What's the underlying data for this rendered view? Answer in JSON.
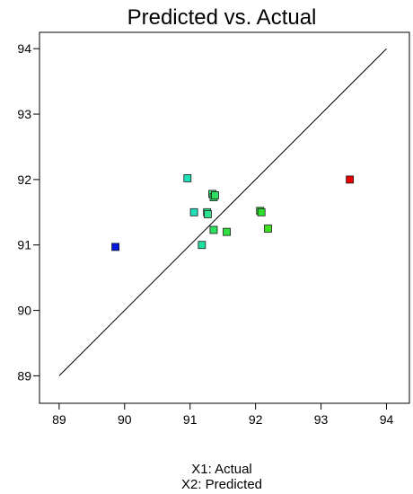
{
  "chart_data": {
    "type": "scatter",
    "title": "Predicted vs. Actual",
    "xlabel": "X1: Actual",
    "ylabel": "X2: Predicted",
    "xlim": [
      88.7,
      94.35
    ],
    "ylim": [
      88.58,
      94.25
    ],
    "x_ticks": [
      "89",
      "90",
      "91",
      "92",
      "93",
      "94"
    ],
    "y_ticks": [
      "89",
      "90",
      "91",
      "92",
      "93",
      "94"
    ],
    "grid": false,
    "reference_line": {
      "x": [
        89,
        94
      ],
      "y": [
        89,
        94
      ]
    },
    "points": [
      {
        "x": 89.86,
        "y": 90.97,
        "color": "#0018e0"
      },
      {
        "x": 90.96,
        "y": 92.02,
        "color": "#20e0b8"
      },
      {
        "x": 91.06,
        "y": 91.5,
        "color": "#20e0b8"
      },
      {
        "x": 91.18,
        "y": 91.0,
        "color": "#20e0a0"
      },
      {
        "x": 91.26,
        "y": 91.5,
        "color": "#30e090"
      },
      {
        "x": 91.27,
        "y": 91.47,
        "color": "#30e090"
      },
      {
        "x": 91.34,
        "y": 91.78,
        "color": "#30e070"
      },
      {
        "x": 91.36,
        "y": 91.73,
        "color": "#30e070"
      },
      {
        "x": 91.38,
        "y": 91.76,
        "color": "#30e060"
      },
      {
        "x": 91.36,
        "y": 91.23,
        "color": "#30e060"
      },
      {
        "x": 91.56,
        "y": 91.2,
        "color": "#30e040"
      },
      {
        "x": 92.07,
        "y": 91.52,
        "color": "#30e030"
      },
      {
        "x": 92.09,
        "y": 91.5,
        "color": "#30e030"
      },
      {
        "x": 92.19,
        "y": 91.25,
        "color": "#40e020"
      },
      {
        "x": 93.44,
        "y": 92.0,
        "color": "#e80000"
      }
    ]
  }
}
